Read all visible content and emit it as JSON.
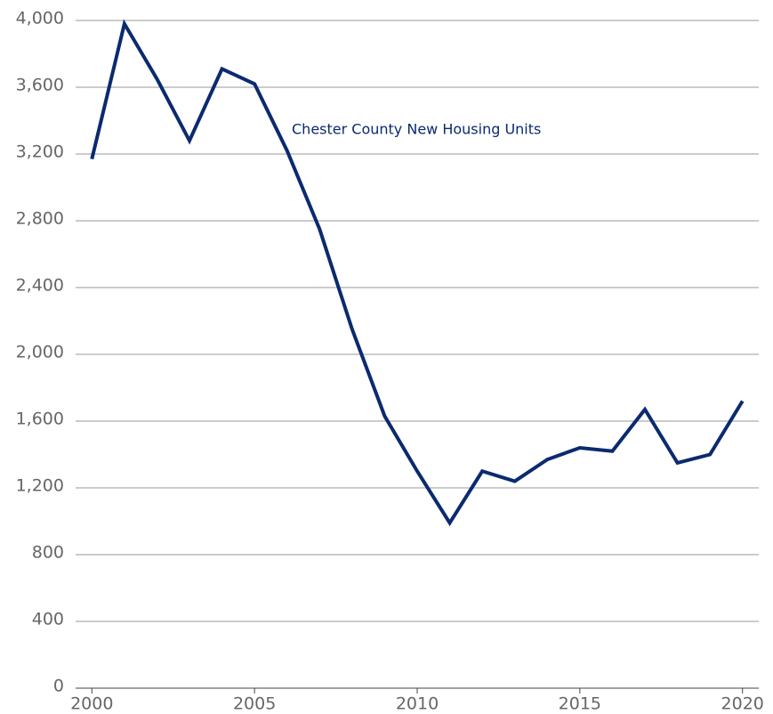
{
  "chart_data": {
    "type": "line",
    "annotation": "Chester County New Housing Units",
    "x": [
      2000,
      2001,
      2002,
      2003,
      2004,
      2005,
      2006,
      2007,
      2008,
      2009,
      2010,
      2011,
      2012,
      2013,
      2014,
      2015,
      2016,
      2017,
      2018,
      2019,
      2020
    ],
    "series": [
      {
        "color": "#0b2a6f",
        "values": [
          3170,
          3980,
          3650,
          3280,
          3710,
          3620,
          3220,
          2750,
          2150,
          1630,
          1300,
          990,
          1300,
          1240,
          1370,
          1440,
          1420,
          1670,
          1350,
          1400,
          1720
        ]
      }
    ],
    "xlim": [
      1999.5,
      2020.5
    ],
    "xticks": [
      2000,
      2005,
      2010,
      2015,
      2020
    ],
    "ylim": [
      0,
      4000
    ],
    "yticks": [
      0,
      {
        "value": 400,
        "label": "400"
      },
      {
        "value": 800,
        "label": "800"
      },
      {
        "value": 1200,
        "label": "1,200"
      },
      {
        "value": 1600,
        "label": "1,600"
      },
      {
        "value": 2000,
        "label": "2,000"
      },
      {
        "value": 2400,
        "label": "2,400"
      },
      {
        "value": 2800,
        "label": "2,800"
      },
      {
        "value": 3200,
        "label": "3,200"
      },
      {
        "value": 3600,
        "label": "3,600"
      },
      {
        "value": 4000,
        "label": "4,000"
      }
    ],
    "grid": true
  }
}
